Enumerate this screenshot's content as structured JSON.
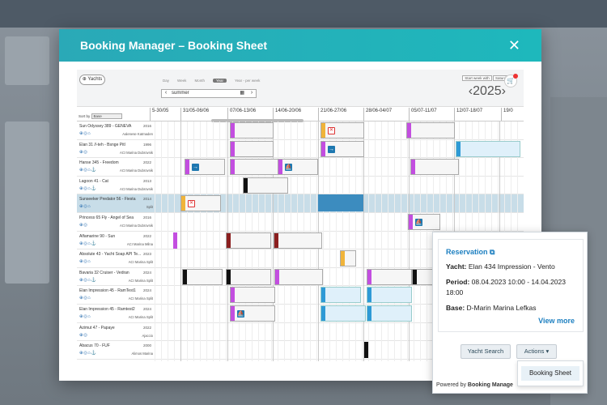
{
  "app": {
    "title": "Booking Manager – Booking Sheet",
    "close": "✕"
  },
  "toolbar": {
    "yachts_label": "Yachts",
    "tabs": [
      "Day",
      "Week",
      "Month",
      "Year",
      "Year - per week"
    ],
    "active_tab": "Year",
    "season": "summer",
    "start_week_label": "Start week with",
    "start_week_value": "Saturday",
    "year": "2025",
    "prev": "‹",
    "next": "›"
  },
  "header": {
    "sort_by": "Sort by",
    "sort_value": "Base",
    "weeks": [
      "5-30/05",
      "31/05-06/06",
      "07/06-13/06",
      "14/06-20/06",
      "21/06-27/06",
      "28/06-04/07",
      "05/07-11/07",
      "12/07-18/07",
      "19/0"
    ]
  },
  "yachts": [
    {
      "name": "Sun Odyssey 389 - GENEVA",
      "year": "2016",
      "base": "Aalenese Katmaden"
    },
    {
      "name": "Elan 31 //-teh - Bsnge Pitl",
      "year": "1996",
      "base": "ACI Marina Dubrovnik"
    },
    {
      "name": "Hanse 345 - Freedom",
      "year": "2022",
      "base": "ACI Marina Dubrovnik"
    },
    {
      "name": "Lagoon 41 - Cat",
      "year": "2013",
      "base": "ACI Marina Dubrovnik"
    },
    {
      "name": "Sunseeker Predator 56 - Fiesta",
      "year": "2014",
      "base": "Split"
    },
    {
      "name": "Princess 65 Fly - Angel of Sea",
      "year": "2016",
      "base": "ACI Marina Dubrovnik"
    },
    {
      "name": "Alfamarine 90 - Sun",
      "year": "2022",
      "base": "ACI Marina Milna"
    },
    {
      "name": "Absolute 43 - Yacht Soap API Te...",
      "year": "2023",
      "base": "ACI Marina Split"
    },
    {
      "name": "Bavaria 32 Cruiser - Vedran",
      "year": "2024",
      "base": "ACI Marina Split"
    },
    {
      "name": "Elan Impression 45 - RamTest1",
      "year": "2024",
      "base": "ACI Marina Split"
    },
    {
      "name": "Elan Impression 45 - Ramtest2",
      "year": "2024",
      "base": "ACI Marina Split"
    },
    {
      "name": "Azimut 47 - Papaye",
      "year": "2022",
      "base": "Ajaccio"
    },
    {
      "name": "Abacus 70 - FUF",
      "year": "2000",
      "base": "Alimos Marina"
    }
  ],
  "popup": {
    "title": "Reservation",
    "yacht_label": "Yacht:",
    "yacht": "Elan 434 Impression - Vento",
    "period_label": "Period:",
    "period": "08.04.2023 10:00 - 14.04.2023 18:00",
    "base_label": "Base:",
    "base": "D-Marin Marina Lefkas",
    "view_more": "View more",
    "yacht_search": "Yacht Search",
    "actions": "Actions ▾",
    "menu_item": "Booking Sheet",
    "powered_prefix": "Powered by",
    "powered_brand": "Booking Manage"
  },
  "colors": {
    "header_start": "#2aa9b7",
    "header_end": "#1eb8bc",
    "magenta": "#c34ee0",
    "orange": "#f0b43a",
    "blue": "#2e9ad6",
    "black": "#111111",
    "maroon": "#8b1f1f"
  }
}
